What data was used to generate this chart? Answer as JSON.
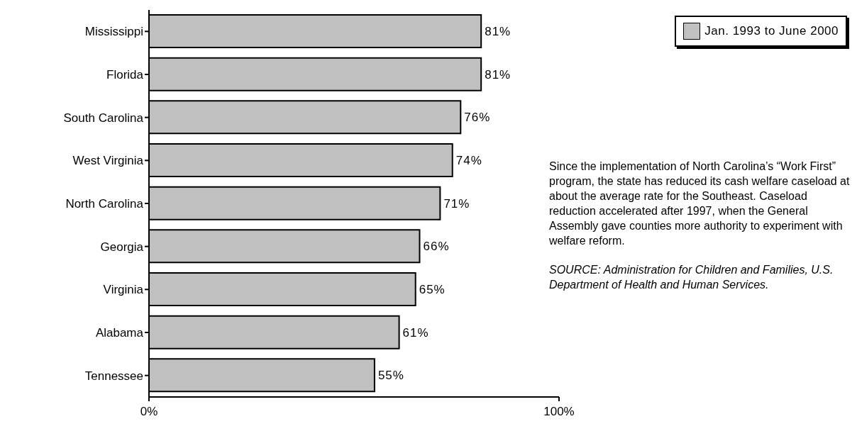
{
  "chart_data": {
    "type": "bar",
    "orientation": "horizontal",
    "categories": [
      "Mississippi",
      "Florida",
      "South Carolina",
      "West Virginia",
      "North Carolina",
      "Georgia",
      "Virginia",
      "Alabama",
      "Tennessee"
    ],
    "series": [
      {
        "name": "Jan. 1993 to June 2000",
        "color": "#c0c0c0",
        "values": [
          81,
          81,
          76,
          74,
          71,
          66,
          65,
          61,
          55
        ]
      }
    ],
    "value_labels": [
      "81%",
      "81%",
      "76%",
      "74%",
      "71%",
      "66%",
      "65%",
      "61%",
      "55%"
    ],
    "xlim": [
      0,
      100
    ],
    "xticks": [
      {
        "value": 0,
        "label": "0%"
      },
      {
        "value": 100,
        "label": "100%"
      }
    ],
    "grid": false,
    "legend": "top right",
    "annotations": [
      "Since the implementation of North Carolina’s “Work First” program, the state has reduced its cash welfare caseload at about the average rate for the Southeast. Caseload reduction accelerated after 1997, when the General Assembly gave counties more authority to experiment with welfare reform.",
      "SOURCE: Administration for Children and Families, U.S. Department of Health and Human Services."
    ]
  }
}
